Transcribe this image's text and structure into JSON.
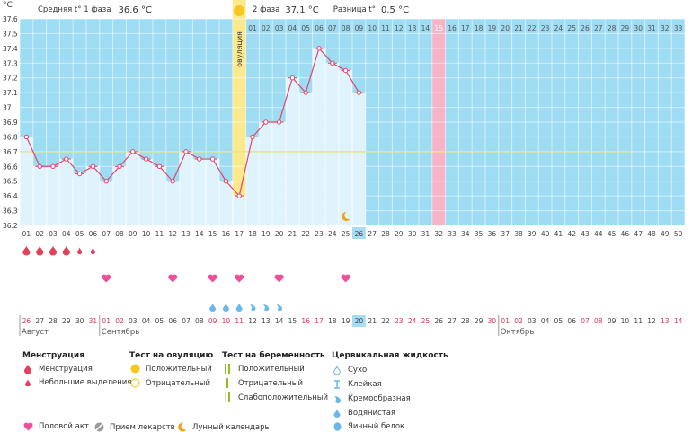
{
  "units": "°C",
  "header": {
    "phase1_label": "Средняя t° 1 фаза",
    "phase1_value": "36.6 °C",
    "phase2_label": "2 фаза",
    "phase2_value": "37.1 °C",
    "diff_label": "Разница t°",
    "diff_value": "0.5 °C"
  },
  "ovulation_label": "овуляция",
  "y_ticks": [
    "37.6",
    "37.5",
    "37.4",
    "37.3",
    "37.2",
    "37.1",
    "37",
    "36.9",
    "36.8",
    "36.7",
    "36.6",
    "36.5",
    "36.4",
    "36.3",
    "36.2"
  ],
  "top_days": [
    "01",
    "02",
    "03",
    "04",
    "05",
    "06",
    "07",
    "08",
    "09",
    "10",
    "11",
    "12",
    "13",
    "14",
    "15",
    "16",
    "17",
    "18",
    "19",
    "20",
    "21",
    "22",
    "23",
    "24",
    "25",
    "26",
    "27",
    "28",
    "29",
    "30",
    "31",
    "32",
    "33"
  ],
  "cycle_days": [
    "01",
    "02",
    "03",
    "04",
    "05",
    "06",
    "07",
    "08",
    "09",
    "10",
    "11",
    "12",
    "13",
    "14",
    "15",
    "16",
    "17",
    "18",
    "19",
    "20",
    "21",
    "22",
    "23",
    "24",
    "25",
    "26",
    "27",
    "28",
    "29",
    "30",
    "31",
    "32",
    "33",
    "34",
    "35",
    "36",
    "37",
    "38",
    "39",
    "40",
    "41",
    "42",
    "43",
    "44",
    "45",
    "46",
    "47",
    "48",
    "49",
    "50"
  ],
  "current_cycle_day": "26",
  "cal_dates": [
    "26",
    "27",
    "28",
    "29",
    "30",
    "31",
    "01",
    "02",
    "03",
    "04",
    "05",
    "06",
    "07",
    "08",
    "09",
    "10",
    "11",
    "12",
    "13",
    "14",
    "15",
    "16",
    "17",
    "18",
    "19",
    "20",
    "21",
    "22",
    "23",
    "24",
    "25",
    "26",
    "27",
    "28",
    "29",
    "30",
    "01",
    "02",
    "03",
    "04",
    "05",
    "06",
    "07",
    "08",
    "09",
    "10",
    "11",
    "12",
    "13",
    "14"
  ],
  "cal_weekend_idx": [
    0,
    5,
    6,
    7,
    14,
    15,
    16,
    21,
    22,
    28,
    29,
    30,
    35,
    36,
    37,
    42,
    43,
    48,
    49
  ],
  "month_labels": [
    {
      "text": "Август",
      "col": 0
    },
    {
      "text": "Сентябрь",
      "col": 6
    },
    {
      "text": "Октябрь",
      "col": 36
    }
  ],
  "coverline": 36.7,
  "ovulation_day_index": 16,
  "highlight_day_index": 31,
  "chart_data": {
    "type": "line",
    "ylabel": "°C",
    "ylim": [
      36.2,
      37.6
    ],
    "x": [
      1,
      2,
      3,
      4,
      5,
      6,
      7,
      8,
      9,
      10,
      11,
      12,
      13,
      14,
      15,
      16,
      17,
      18,
      19,
      20,
      21,
      22,
      23,
      24,
      25,
      26
    ],
    "values": [
      36.8,
      36.6,
      36.6,
      36.65,
      36.55,
      36.6,
      36.5,
      36.6,
      36.7,
      36.65,
      36.6,
      36.5,
      36.7,
      36.65,
      36.65,
      36.5,
      36.4,
      36.8,
      36.9,
      36.9,
      37.2,
      37.1,
      37.4,
      37.3,
      37.25,
      37.1
    ]
  },
  "menstruation": [
    {
      "day": 1,
      "type": "heavy"
    },
    {
      "day": 2,
      "type": "heavy"
    },
    {
      "day": 3,
      "type": "heavy"
    },
    {
      "day": 4,
      "type": "heavy"
    },
    {
      "day": 5,
      "type": "light"
    },
    {
      "day": 6,
      "type": "light"
    }
  ],
  "intercourse_days": [
    7,
    12,
    15,
    17,
    20,
    25
  ],
  "fluid": [
    {
      "day": 15,
      "type": "watery"
    },
    {
      "day": 16,
      "type": "watery"
    },
    {
      "day": 17,
      "type": "watery"
    },
    {
      "day": 18,
      "type": "creamy"
    },
    {
      "day": 19,
      "type": "creamy"
    },
    {
      "day": 20,
      "type": "creamy"
    }
  ],
  "moon_day": 25,
  "colors": {
    "chart_bg": "#9ddcf3",
    "bar": "#dff3fc",
    "line": "#e2456a",
    "coverline": "#e8e48f",
    "ovulation": "#fbe98c",
    "highlight": "#f6b4c6",
    "drop": "#e0425a",
    "heart": "#ef4f9a",
    "fluid": "#6bb8e8",
    "weekend": "#e0325a",
    "current": "#a7dcf5"
  },
  "legend": {
    "menstruation": {
      "title": "Менструация",
      "items": [
        "Менструация",
        "Небольшие выделения"
      ]
    },
    "ovulation_test": {
      "title": "Тест на овуляцию",
      "items": [
        "Положительный",
        "Отрицательный"
      ]
    },
    "pregnancy_test": {
      "title": "Тест на беременность",
      "items": [
        "Положительный",
        "Отрицательный",
        "Слабоположительный"
      ]
    },
    "cervical": {
      "title": "Цервикальная жидкость",
      "items": [
        "Сухо",
        "Клейкая",
        "Кремообразная",
        "Водянистая",
        "Яичный белок"
      ]
    },
    "bottom": {
      "intercourse": "Половой акт",
      "medication": "Прием лекарств",
      "lunar": "Лунный календарь"
    }
  }
}
